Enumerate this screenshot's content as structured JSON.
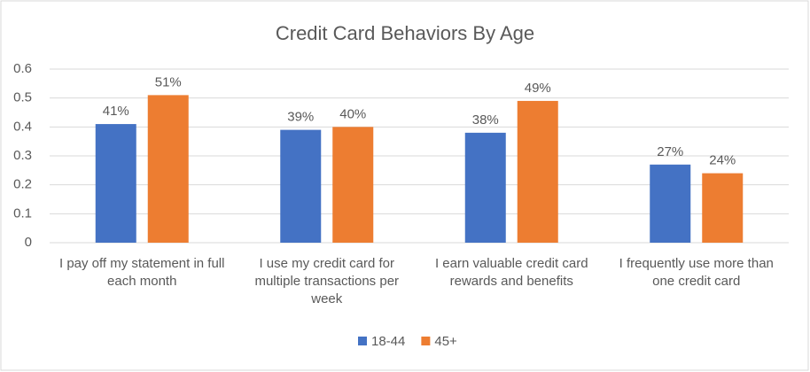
{
  "chart_data": {
    "type": "bar",
    "title": "Credit Card Behaviors By Age",
    "categories": [
      "I pay off my statement in full each month",
      "I use my credit card for multiple transactions per week",
      "I earn valuable credit card rewards and benefits",
      "I frequently use more than one credit card"
    ],
    "series": [
      {
        "name": "18-44",
        "color": "#4472c4",
        "values": [
          0.41,
          0.39,
          0.38,
          0.27
        ],
        "value_labels": [
          "41%",
          "39%",
          "38%",
          "27%"
        ]
      },
      {
        "name": "45+",
        "color": "#ed7d31",
        "values": [
          0.51,
          0.4,
          0.49,
          0.24
        ],
        "value_labels": [
          "51%",
          "40%",
          "49%",
          "24%"
        ]
      }
    ],
    "ylim": [
      0,
      0.6
    ],
    "yticks": [
      0,
      0.1,
      0.2,
      0.3,
      0.4,
      0.5,
      0.6
    ],
    "grid": true,
    "legend": "bottom"
  }
}
